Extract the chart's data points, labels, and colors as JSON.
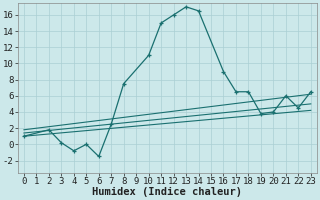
{
  "xlabel": "Humidex (Indice chaleur)",
  "bg_color": "#cce8ea",
  "grid_color": "#aacfd4",
  "line_color": "#1a7070",
  "xlim": [
    -0.5,
    23.5
  ],
  "ylim": [
    -3.5,
    17.5
  ],
  "xticks": [
    0,
    1,
    2,
    3,
    4,
    5,
    6,
    7,
    8,
    9,
    10,
    11,
    12,
    13,
    14,
    15,
    16,
    17,
    18,
    19,
    20,
    21,
    22,
    23
  ],
  "yticks": [
    -2,
    0,
    2,
    4,
    6,
    8,
    10,
    12,
    14,
    16
  ],
  "main_x": [
    0,
    2,
    3,
    4,
    5,
    6,
    7,
    8,
    10,
    11,
    12,
    13,
    14,
    16,
    17,
    18,
    19,
    20,
    21,
    22,
    23
  ],
  "main_y": [
    1.0,
    1.8,
    0.2,
    -0.8,
    0.0,
    -1.5,
    2.5,
    7.5,
    11.0,
    15.0,
    16.0,
    17.0,
    16.5,
    9.0,
    6.5,
    6.5,
    3.8,
    4.0,
    6.0,
    4.5,
    6.5
  ],
  "line1_x": [
    0,
    23
  ],
  "line1_y": [
    1.0,
    4.2
  ],
  "line2_x": [
    0,
    23
  ],
  "line2_y": [
    1.4,
    5.0
  ],
  "line3_x": [
    0,
    23
  ],
  "line3_y": [
    1.8,
    6.2
  ],
  "marker_size": 3,
  "font_size_ticks": 6.5,
  "font_size_xlabel": 7.5
}
